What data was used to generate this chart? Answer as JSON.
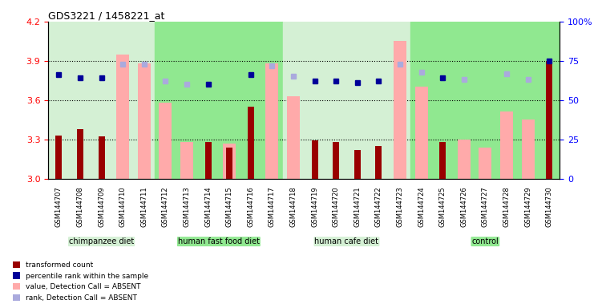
{
  "title": "GDS3221 / 1458221_at",
  "samples": [
    "GSM144707",
    "GSM144708",
    "GSM144709",
    "GSM144710",
    "GSM144711",
    "GSM144712",
    "GSM144713",
    "GSM144714",
    "GSM144715",
    "GSM144716",
    "GSM144717",
    "GSM144718",
    "GSM144719",
    "GSM144720",
    "GSM144721",
    "GSM144722",
    "GSM144723",
    "GSM144724",
    "GSM144725",
    "GSM144726",
    "GSM144727",
    "GSM144728",
    "GSM144729",
    "GSM144730"
  ],
  "transformed_count": [
    3.33,
    3.38,
    3.32,
    null,
    null,
    null,
    null,
    3.28,
    3.24,
    3.55,
    null,
    null,
    3.29,
    3.28,
    3.22,
    3.25,
    null,
    null,
    3.28,
    null,
    null,
    null,
    null,
    3.9
  ],
  "percentile_rank": [
    66,
    64,
    64,
    73,
    73,
    62,
    60,
    60,
    null,
    66,
    72,
    65,
    62,
    62,
    61,
    62,
    73,
    68,
    64,
    63,
    null,
    67,
    63,
    75
  ],
  "value_absent": [
    null,
    null,
    null,
    3.95,
    3.88,
    3.58,
    3.28,
    null,
    3.27,
    null,
    3.88,
    3.63,
    null,
    null,
    null,
    null,
    4.05,
    3.7,
    null,
    3.3,
    3.24,
    3.51,
    3.45,
    null
  ],
  "rank_absent": [
    null,
    null,
    null,
    73,
    73,
    62,
    60,
    null,
    null,
    null,
    72,
    65,
    null,
    null,
    null,
    null,
    73,
    68,
    null,
    63,
    null,
    67,
    63,
    null
  ],
  "groups": [
    {
      "label": "chimpanzee diet",
      "start": 0,
      "end": 5,
      "color": "#d4f0d4"
    },
    {
      "label": "human fast food diet",
      "start": 5,
      "end": 11,
      "color": "#90e890"
    },
    {
      "label": "human cafe diet",
      "start": 11,
      "end": 17,
      "color": "#d4f0d4"
    },
    {
      "label": "control",
      "start": 17,
      "end": 24,
      "color": "#90e890"
    }
  ],
  "ylim_left": [
    3.0,
    4.2
  ],
  "ylim_right": [
    0,
    100
  ],
  "yticks_left": [
    3.0,
    3.3,
    3.6,
    3.9,
    4.2
  ],
  "yticks_right": [
    0,
    25,
    50,
    75,
    100
  ],
  "bar_color_dark": "#990000",
  "bar_color_light": "#ffaaaa",
  "rank_color_dark": "#000099",
  "rank_color_light": "#aaaadd",
  "dotted_levels": [
    3.3,
    3.6,
    3.9
  ],
  "legend_items": [
    {
      "label": "transformed count",
      "color": "#990000",
      "marker": "s"
    },
    {
      "label": "percentile rank within the sample",
      "color": "#000099",
      "marker": "s"
    },
    {
      "label": "value, Detection Call = ABSENT",
      "color": "#ffaaaa",
      "marker": "s"
    },
    {
      "label": "rank, Detection Call = ABSENT",
      "color": "#aaaadd",
      "marker": "s"
    }
  ]
}
